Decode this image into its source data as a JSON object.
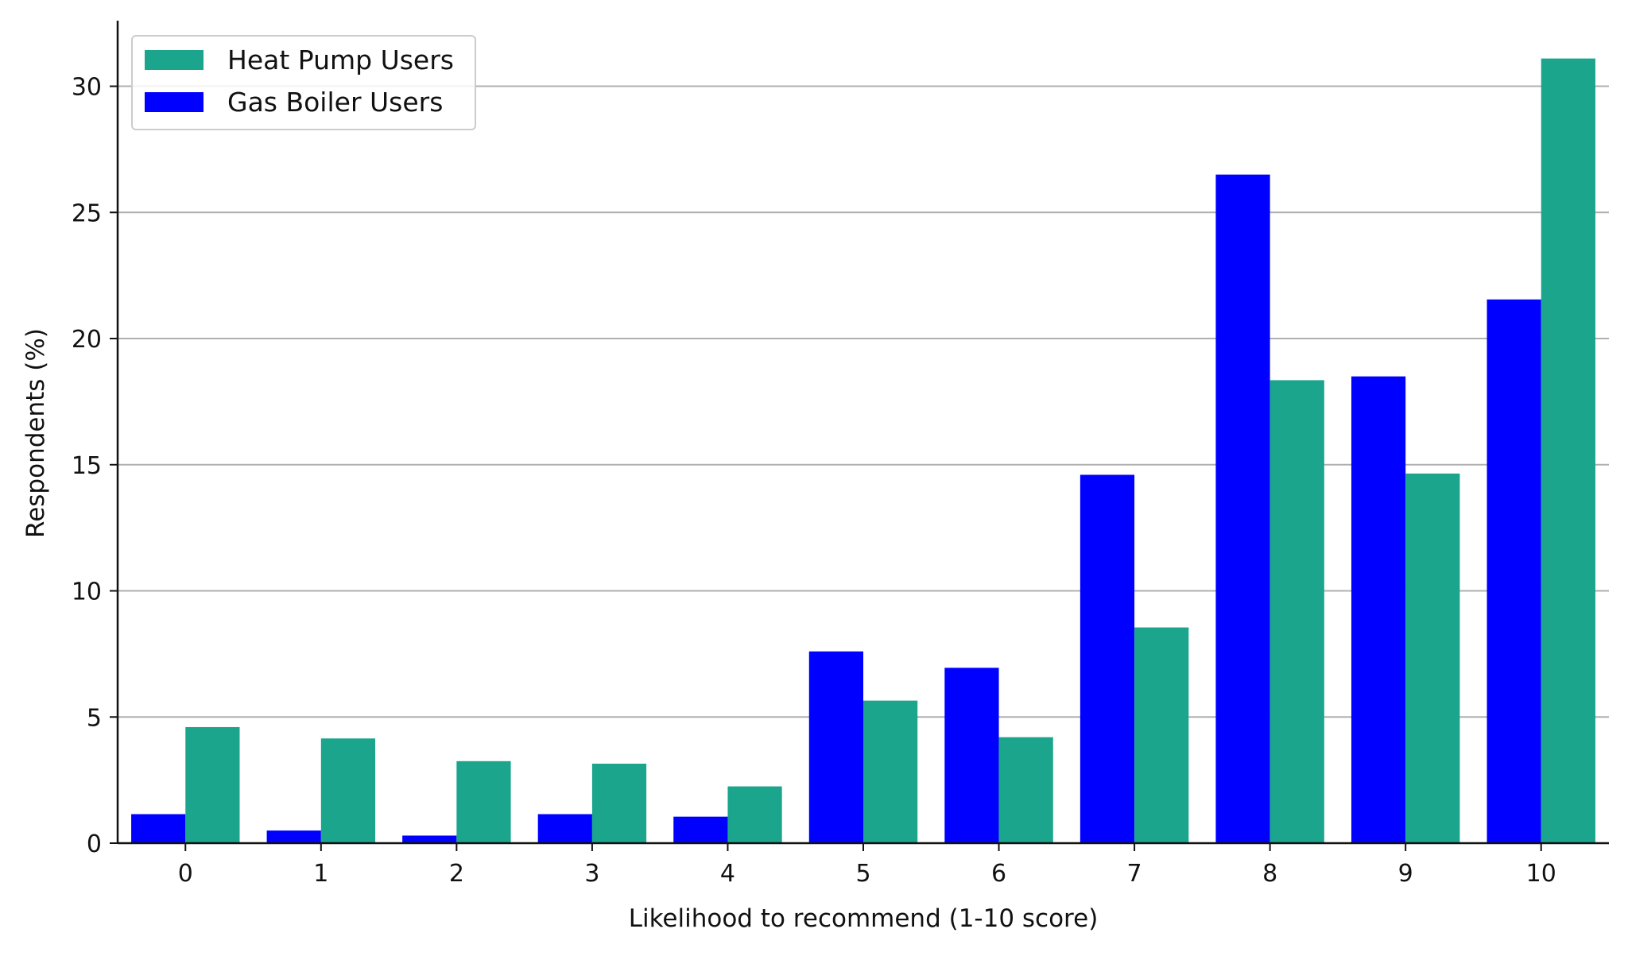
{
  "chart_data": {
    "type": "bar",
    "title": "",
    "xlabel": "Likelihood to recommend (1-10 score)",
    "ylabel": "Respondents (%)",
    "categories": [
      "0",
      "1",
      "2",
      "3",
      "4",
      "5",
      "6",
      "7",
      "8",
      "9",
      "10"
    ],
    "series": [
      {
        "name": "Gas Boiler Users",
        "color": "#0000ff",
        "values": [
          1.15,
          0.5,
          0.3,
          1.15,
          1.05,
          7.6,
          6.95,
          14.6,
          26.5,
          18.5,
          21.55
        ]
      },
      {
        "name": "Heat Pump Users",
        "color": "#1aa58c",
        "values": [
          4.6,
          4.15,
          3.25,
          3.15,
          2.25,
          5.65,
          4.2,
          8.55,
          18.35,
          14.65,
          31.1
        ]
      }
    ],
    "legend_order": [
      "Heat Pump Users",
      "Gas Boiler Users"
    ],
    "legend_position": "top-left",
    "ylim": [
      0,
      32.6
    ],
    "yticks": [
      0,
      5,
      10,
      15,
      20,
      25,
      30
    ],
    "grid": "horizontal"
  }
}
